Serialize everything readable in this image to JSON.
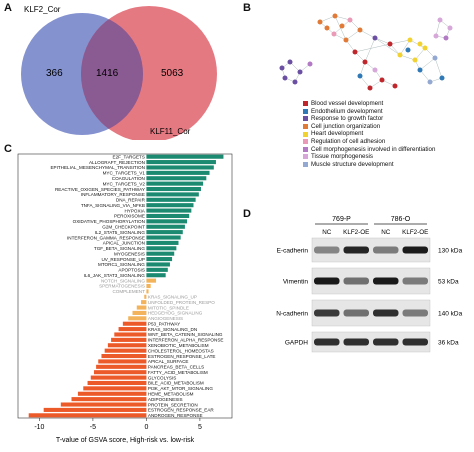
{
  "panels": {
    "a": "A",
    "b": "B",
    "c": "C",
    "d": "D"
  },
  "venn": {
    "left_label": "KLF2_Cor",
    "right_label": "KLF11_Cor",
    "left_only": "366",
    "overlap": "1416",
    "right_only": "5063",
    "left_color": "#6f7fc8",
    "right_color": "#e0626c"
  },
  "network": {
    "legend": [
      {
        "label": "Blood vessel development",
        "color": "#c0272d"
      },
      {
        "label": "Endothelium development",
        "color": "#2f79b7"
      },
      {
        "label": "Response to growth factor",
        "color": "#6a4fa3"
      },
      {
        "label": "Cell junction organization",
        "color": "#e07a36"
      },
      {
        "label": "Heart development",
        "color": "#f2d22f"
      },
      {
        "label": "Regulation of cell adhesion",
        "color": "#ea9ab7"
      },
      {
        "label": "Cell morphogenesis involved in differentiation",
        "color": "#b27ac4"
      },
      {
        "label": "Tissue morphogenesis",
        "color": "#d6a7d8"
      },
      {
        "label": "Muscle structure development",
        "color": "#94a9d1"
      }
    ]
  },
  "chart_data": {
    "type": "bar",
    "orientation": "horizontal",
    "xlabel": "T-value of GSVA score, High-risk vs. low-risk",
    "xlim": [
      -12,
      8
    ],
    "xticks": [
      -10,
      -5,
      0,
      5
    ],
    "colors": {
      "positive": "#1c8a70",
      "negative": "#ec5a2a",
      "ns": "#f2b35b"
    },
    "categories": [
      "E2F_TARGETS",
      "ALLOGRAFT_REJECTION",
      "EPITHELIAL_MESENCHYMAL_TRANSITION",
      "MYC_TARGETS_V1",
      "COAGULATION",
      "MYC_TARGETS_V2",
      "REACTIVE_OXIGEN_SPECIES_PATHWAY",
      "INFLAMMATORY_RESPONSE",
      "DNA_REPAIR",
      "TNFA_SIGNALING_VIA_NFKB",
      "HYPOXIA",
      "PEROXISOME",
      "OXIDATIVE_PHOSPHORYLATION",
      "G2M_CHECKPOINT",
      "IL2_STAT5_SIGNALING",
      "INTERFERON_GAMMA_RESPONSE",
      "APICAL_JUNCTION",
      "TGF_BETA_SIGNALING",
      "MYOGENESIS",
      "UV_RESPONSE_UP",
      "MTORC1_SIGNALING",
      "APOPTOSIS",
      "IL6_JAK_STAT3_SIGNALING",
      "NOTCH_SIGNALING",
      "SPERMATOGENESIS",
      "COMPLEMENT",
      "KRAS_SIGNALING_UP",
      "UNFOLDED_PROTEIN_RESPONSE",
      "MITOTIC_SPINDLE",
      "HEDGEHOG_SIGNALING",
      "ANGIOGENESIS",
      "P53_PATHWAY",
      "KRAS_SIGNALING_DN",
      "WNT_BETA_CATENIN_SIGNALING",
      "INTERFERON_ALPHA_RESPONSE",
      "XENOBIOTIC_METABOLISM",
      "CHOLESTEROL_HOMEOSTASIS",
      "ESTROGEN_RESPONSE_LATE",
      "APICAL_SURFACE",
      "PANCREAS_BETA_CELLS",
      "FATTY_ACID_METABOLISM",
      "GLYCOLYSIS",
      "BILE_ACID_METABOLISM",
      "PI3K_AKT_MTOR_SIGNALING",
      "HEME_METABOLISM",
      "ADIPOGENESIS",
      "PROTEIN_SECRETION",
      "ESTROGEN_RESPONSE_EARLY",
      "ANDROGEN_RESPONSE"
    ],
    "display_labels": [
      "E2F_TARGETS",
      "ALLOGRAFT_REJECTION",
      "EPITHELIAL_MESENCHYMAL_TRANSITION",
      "MYC_TARGETS_V1",
      "COAGULATION",
      "MYC_TARGETS_V2",
      "REACTIVE_OXIGEN_SPECIES_PATHWAY",
      "INFLAMMATORY_RESPONSE",
      "DNA_REPAIR",
      "TNFA_SIGNALING_VIA_NFKB",
      "HYPOXIA",
      "PEROXISOME",
      "OXIDATIVE_PHOSPHORYLATION",
      "G2M_CHECKPOINT",
      "IL2_STAT5_SIGNALING",
      "INTERFERON_GAMMA_RESPONSE",
      "APICAL_JUNCTION",
      "TGF_BETA_SIGNALING",
      "MYOGENESIS",
      "UV_RESPONSE_UP",
      "MTORC1_SIGNALING",
      "APOPTOSIS",
      "IL6_JAK_STAT3_SIGNALING",
      "NOTCH_SIGNALING",
      "SPERMATOGENESIS",
      "COMPLEMENT",
      "KRAS_SIGNALING_UP",
      "UNFOLDED_PROTEIN_RESPO",
      "MITOTIC_SPINDLE",
      "HEDGEHOG_SIGNALING",
      "ANGIOGENESIS",
      "P53_PATHWAY",
      "KRAS_SIGNALING_DN",
      "WNT_BETA_CATENIN_SIGNALING",
      "INTERFERON_ALPHA_RESPONSE",
      "XENOBIOTIC_METABOLISM",
      "CHOLESTEROL_HOMEOSTAS",
      "ESTROGEN_RESPONSE_LATE",
      "APICAL_SURFACE",
      "PANCREAS_BETA_CELLS",
      "FATTY_ACID_METABOLISM",
      "GLYCOLYSIS",
      "BILE_ACID_METABOLISM",
      "PI3K_AKT_MTOR_SIGNALING",
      "HEME_METABOLISM",
      "ADIPOGENESIS",
      "PROTEIN_SECRETION",
      "ESTROGEN_RESPONSE_EAR",
      "ANDROGEN_RESPONSE"
    ],
    "values": [
      7.2,
      6.5,
      6.3,
      5.9,
      5.6,
      5.3,
      5.1,
      4.9,
      4.6,
      4.4,
      4.2,
      4.0,
      3.8,
      3.6,
      3.4,
      3.2,
      3.0,
      2.8,
      2.6,
      2.4,
      2.2,
      2.0,
      1.8,
      0.9,
      0.4,
      0.2,
      -0.2,
      -0.5,
      -0.9,
      -1.3,
      -1.7,
      -2.2,
      -2.6,
      -3.0,
      -3.3,
      -3.6,
      -3.9,
      -4.2,
      -4.5,
      -4.7,
      -4.9,
      -5.2,
      -5.5,
      -5.9,
      -6.4,
      -7.0,
      -8.0,
      -9.6,
      -11.0
    ],
    "significance": [
      "pos",
      "pos",
      "pos",
      "pos",
      "pos",
      "pos",
      "pos",
      "pos",
      "pos",
      "pos",
      "pos",
      "pos",
      "pos",
      "pos",
      "pos",
      "pos",
      "pos",
      "pos",
      "pos",
      "pos",
      "pos",
      "pos",
      "pos",
      "ns",
      "ns",
      "ns",
      "ns",
      "ns",
      "ns",
      "ns",
      "ns",
      "neg",
      "neg",
      "neg",
      "neg",
      "neg",
      "neg",
      "neg",
      "neg",
      "neg",
      "neg",
      "neg",
      "neg",
      "neg",
      "neg",
      "neg",
      "neg",
      "neg",
      "neg"
    ]
  },
  "western": {
    "cell_lines": [
      "769-P",
      "786-O"
    ],
    "conditions": [
      "NC",
      "KLF2-OE",
      "NC",
      "KLF2-OE"
    ],
    "rows": [
      {
        "protein": "E-cadherin",
        "size": "130 kDa",
        "intensity": [
          0.45,
          0.9,
          0.5,
          0.95
        ]
      },
      {
        "protein": "Vimentin",
        "size": "53 kDa",
        "intensity": [
          0.95,
          0.55,
          0.95,
          0.5
        ]
      },
      {
        "protein": "N-cadherin",
        "size": "140 kDa",
        "intensity": [
          0.8,
          0.55,
          0.85,
          0.5
        ]
      },
      {
        "protein": "GAPDH",
        "size": "36 kDa",
        "intensity": [
          0.85,
          0.85,
          0.85,
          0.85
        ]
      }
    ]
  }
}
